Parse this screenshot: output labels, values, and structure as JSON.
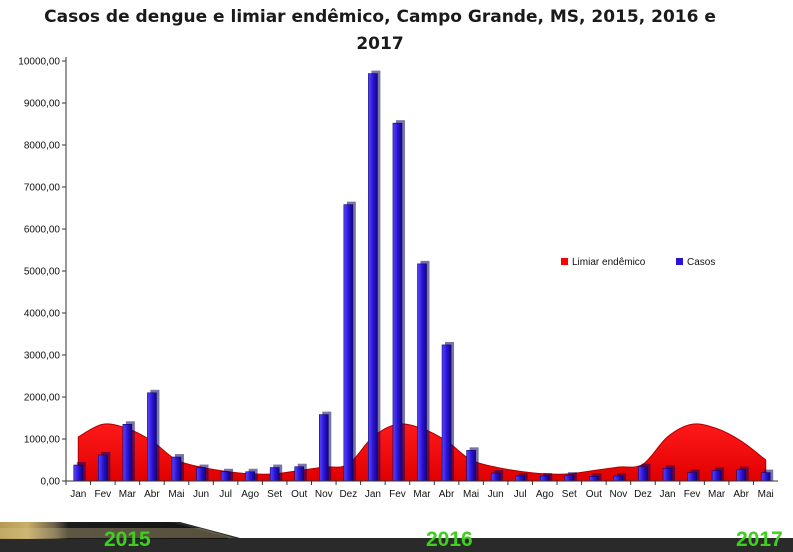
{
  "chart_data": {
    "type": "bar",
    "title": "Casos de dengue e limiar endêmico, Campo Grande, MS, 2015, 2016 e 2017",
    "categories": [
      "Jan",
      "Fev",
      "Mar",
      "Abr",
      "Mai",
      "Jun",
      "Jul",
      "Ago",
      "Set",
      "Out",
      "Nov",
      "Dez",
      "Jan",
      "Fev",
      "Mar",
      "Abr",
      "Mai",
      "Jun",
      "Jul",
      "Ago",
      "Set",
      "Out",
      "Nov",
      "Dez",
      "Jan",
      "Fev",
      "Mar",
      "Abr",
      "Mai"
    ],
    "y_ticks": [
      "0,00",
      "1000,00",
      "2000,00",
      "3000,00",
      "4000,00",
      "5000,00",
      "6000,00",
      "7000,00",
      "8000,00",
      "9000,00",
      "10000,00"
    ],
    "ylim": [
      0,
      10000
    ],
    "grid": false,
    "legend_position": "right",
    "series": [
      {
        "name": "Limiar endêmico",
        "kind": "area",
        "color": "#ff0000",
        "values": [
          1050,
          1350,
          1250,
          950,
          500,
          330,
          230,
          170,
          170,
          250,
          330,
          400,
          1050,
          1350,
          1250,
          950,
          500,
          330,
          230,
          170,
          170,
          250,
          330,
          400,
          1050,
          1350,
          1250,
          950,
          500
        ]
      },
      {
        "name": "Casos",
        "kind": "bar",
        "color": "#2a12d6",
        "values": [
          380,
          620,
          1350,
          2100,
          570,
          320,
          220,
          220,
          320,
          340,
          1580,
          6580,
          9700,
          8520,
          5170,
          3240,
          730,
          190,
          120,
          120,
          140,
          110,
          120,
          340,
          300,
          200,
          250,
          270,
          200
        ]
      }
    ]
  },
  "footer": {
    "years": [
      "2015",
      "2016",
      "2017"
    ]
  }
}
